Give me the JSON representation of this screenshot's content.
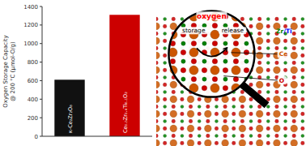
{
  "chart_data": {
    "type": "bar",
    "categories": [
      "κ-Ce₂Zr₂O₈",
      "Ce₀.₅Zr₀.₄Ti₀.₁O₂"
    ],
    "values": [
      610,
      1310
    ],
    "colors": [
      "#111111",
      "#cc0000"
    ],
    "ylabel": [
      "Oxygen Storage Capacity",
      "@ 200 °C (μmol-O/g)"
    ],
    "ylim": [
      0,
      1400
    ],
    "yticks": [
      0,
      200,
      400,
      600,
      800,
      1000,
      1200,
      1400
    ],
    "grid": false,
    "annotations": [
      {
        "text": "oxygen",
        "color": "red"
      },
      {
        "text": "storage"
      },
      {
        "text": "release"
      },
      {
        "text": "Zr",
        "color": "green"
      },
      {
        "text": "/Ti",
        "color": "blue"
      },
      {
        "text": "Ce",
        "color": "#cc5500"
      },
      {
        "text": "O",
        "color": "#cc0000"
      }
    ]
  }
}
